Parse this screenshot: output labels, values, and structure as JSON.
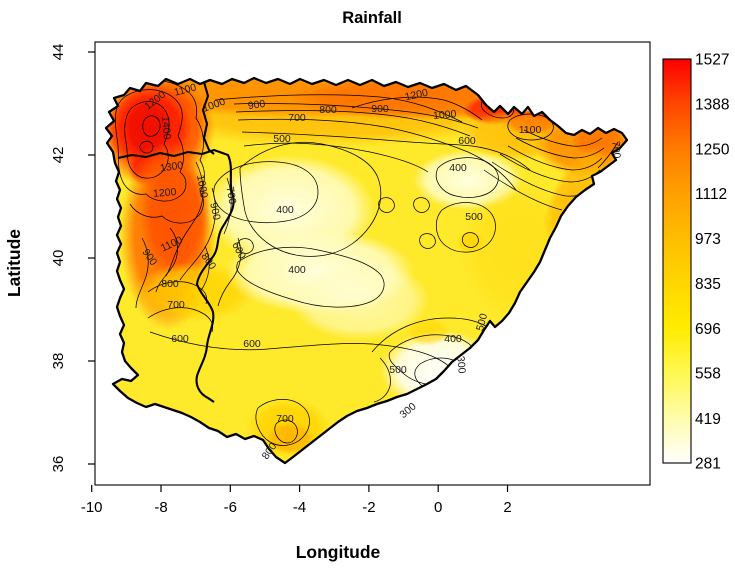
{
  "title": "Rainfall",
  "axes": {
    "x_label": "Longitude",
    "y_label": "Latitude",
    "x_ticks": [
      -10,
      -8,
      -6,
      -4,
      -2,
      0,
      2
    ],
    "y_ticks": [
      36,
      38,
      40,
      42,
      44
    ]
  },
  "legend": {
    "min": 281,
    "max": 1527,
    "ticks": [
      1527,
      1388,
      1250,
      1112,
      973,
      835,
      696,
      558,
      419,
      281
    ],
    "gradient": [
      {
        "o": 0.0,
        "c": "#FB0000"
      },
      {
        "o": 0.111,
        "c": "#FF4600"
      },
      {
        "o": 0.222,
        "c": "#FF7B00"
      },
      {
        "o": 0.333,
        "c": "#FFA000"
      },
      {
        "o": 0.444,
        "c": "#FFBD00"
      },
      {
        "o": 0.556,
        "c": "#FFD700"
      },
      {
        "o": 0.667,
        "c": "#FFEC00"
      },
      {
        "o": 0.778,
        "c": "#FFF852"
      },
      {
        "o": 0.889,
        "c": "#FFFCAC"
      },
      {
        "o": 1.0,
        "c": "#FFFFFF"
      }
    ]
  },
  "chart_data": {
    "type": "heatmap",
    "subtype": "filled-contour-map",
    "title": "Rainfall",
    "region": "Iberian Peninsula (Spain and Portugal)",
    "xlabel": "Longitude",
    "ylabel": "Latitude",
    "xlim": [
      -10.1,
      6.1
    ],
    "ylim": [
      35.6,
      44.2
    ],
    "x_ticks": [
      -10,
      -8,
      -6,
      -4,
      -2,
      0,
      2
    ],
    "y_ticks": [
      36,
      38,
      40,
      42,
      44
    ],
    "grid": false,
    "legend_position": "right-colorbar",
    "colorbar": {
      "ticks": [
        1527,
        1388,
        1250,
        1112,
        973,
        835,
        696,
        558,
        419,
        281
      ],
      "min": 281,
      "max": 1527,
      "palette": "white -> yellow -> orange -> red (reversed heat colors)"
    },
    "contour_interval": 100,
    "labeled_levels": [
      300,
      400,
      500,
      600,
      700,
      800,
      900,
      1000,
      1100,
      1200,
      1300,
      1400
    ],
    "pattern": "maximum rainfall (>1400) in NW Galicia and north coast; minimum (~300) on SE Mediterranean coast; pale 400 basins in Duero, La Mancha and Ebro valleys",
    "contour_labels": [
      {
        "value": 1100,
        "lon": -7.3,
        "lat": 43.2,
        "px": [
          186,
          93
        ],
        "rot": -15
      },
      {
        "value": 1200,
        "lon": -8.1,
        "lat": 43.0,
        "px": [
          157,
          103
        ],
        "rot": -38
      },
      {
        "value": 1400,
        "lon": -7.9,
        "lat": 42.5,
        "px": [
          163,
          128
        ],
        "rot": 85
      },
      {
        "value": 1300,
        "lon": -7.7,
        "lat": 41.7,
        "px": [
          172,
          170
        ],
        "rot": -8
      },
      {
        "value": 1200,
        "lon": -7.9,
        "lat": 41.2,
        "px": [
          165,
          196
        ],
        "rot": -5
      },
      {
        "value": 1000,
        "lon": -6.9,
        "lat": 41.4,
        "px": [
          199,
          187
        ],
        "rot": 80
      },
      {
        "value": 700,
        "lon": -6.1,
        "lat": 41.2,
        "px": [
          228,
          196
        ],
        "rot": 80
      },
      {
        "value": 900,
        "lon": -6.5,
        "lat": 40.9,
        "px": [
          212,
          212
        ],
        "rot": 78
      },
      {
        "value": 1100,
        "lon": -7.7,
        "lat": 40.2,
        "px": [
          173,
          247
        ],
        "rot": -25
      },
      {
        "value": 900,
        "lon": -8.4,
        "lat": 40.0,
        "px": [
          147,
          259
        ],
        "rot": 55
      },
      {
        "value": 600,
        "lon": -5.8,
        "lat": 40.1,
        "px": [
          236,
          252
        ],
        "rot": 62
      },
      {
        "value": 800,
        "lon": -6.7,
        "lat": 39.9,
        "px": [
          206,
          263
        ],
        "rot": 55
      },
      {
        "value": 800,
        "lon": -7.7,
        "lat": 39.4,
        "px": [
          170,
          287
        ],
        "rot": 0
      },
      {
        "value": 700,
        "lon": -7.6,
        "lat": 39.0,
        "px": [
          176,
          308
        ],
        "rot": 0
      },
      {
        "value": 1000,
        "lon": -6.4,
        "lat": 42.9,
        "px": [
          215,
          108
        ],
        "rot": -20
      },
      {
        "value": 900,
        "lon": -5.2,
        "lat": 42.9,
        "px": [
          257,
          108
        ],
        "rot": -8
      },
      {
        "value": 700,
        "lon": -4.1,
        "lat": 42.7,
        "px": [
          297,
          121
        ],
        "rot": 0
      },
      {
        "value": 800,
        "lon": -3.2,
        "lat": 42.8,
        "px": [
          328,
          113
        ],
        "rot": 0
      },
      {
        "value": 900,
        "lon": -1.7,
        "lat": 42.8,
        "px": [
          380,
          112
        ],
        "rot": 0
      },
      {
        "value": 1200,
        "lon": -0.6,
        "lat": 43.1,
        "px": [
          417,
          98
        ],
        "rot": -12
      },
      {
        "value": 1000,
        "lon": 0.2,
        "lat": 42.7,
        "px": [
          445,
          118
        ],
        "rot": -5
      },
      {
        "value": 1100,
        "lon": 2.7,
        "lat": 42.4,
        "px": [
          530,
          133
        ],
        "rot": 0
      },
      {
        "value": 700,
        "lon": 5.1,
        "lat": 42.1,
        "px": [
          613,
          150
        ],
        "rot": 85
      },
      {
        "value": 600,
        "lon": 0.8,
        "lat": 42.2,
        "px": [
          467,
          144
        ],
        "rot": 0
      },
      {
        "value": 400,
        "lon": 0.6,
        "lat": 41.7,
        "px": [
          458,
          171
        ],
        "rot": 0
      },
      {
        "value": 500,
        "lon": -4.5,
        "lat": 42.3,
        "px": [
          282,
          142
        ],
        "rot": 0
      },
      {
        "value": 500,
        "lon": 1.0,
        "lat": 40.7,
        "px": [
          474,
          220
        ],
        "rot": 0
      },
      {
        "value": 400,
        "lon": -4.4,
        "lat": 40.9,
        "px": [
          285,
          213
        ],
        "rot": 0
      },
      {
        "value": 400,
        "lon": -4.1,
        "lat": 39.7,
        "px": [
          297,
          273
        ],
        "rot": 0
      },
      {
        "value": 600,
        "lon": -7.5,
        "lat": 38.4,
        "px": [
          180,
          342
        ],
        "rot": 0
      },
      {
        "value": 600,
        "lon": -5.4,
        "lat": 38.3,
        "px": [
          252,
          347
        ],
        "rot": 0
      },
      {
        "value": 700,
        "lon": -4.4,
        "lat": 36.8,
        "px": [
          285,
          422
        ],
        "rot": 0
      },
      {
        "value": 800,
        "lon": -4.8,
        "lat": 36.2,
        "px": [
          272,
          453
        ],
        "rot": -55
      },
      {
        "value": 500,
        "lon": 1.4,
        "lat": 38.7,
        "px": [
          485,
          323
        ],
        "rot": -75
      },
      {
        "value": 400,
        "lon": 0.4,
        "lat": 38.4,
        "px": [
          453,
          342
        ],
        "rot": 0
      },
      {
        "value": 300,
        "lon": 0.6,
        "lat": 37.9,
        "px": [
          458,
          365
        ],
        "rot": 85
      },
      {
        "value": 500,
        "lon": -1.2,
        "lat": 37.8,
        "px": [
          398,
          373
        ],
        "rot": 0
      },
      {
        "value": 300,
        "lon": -0.8,
        "lat": 37.0,
        "px": [
          410,
          413
        ],
        "rot": -40
      }
    ]
  }
}
